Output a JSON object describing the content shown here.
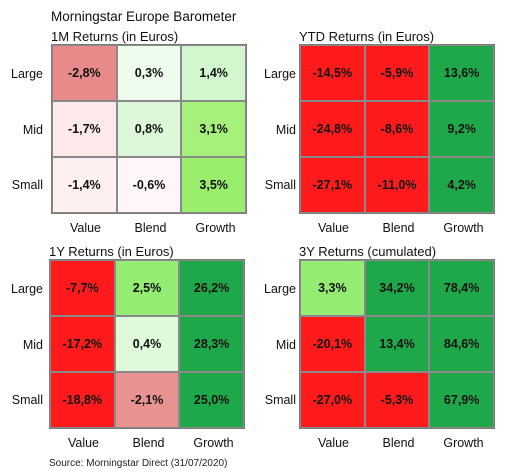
{
  "page_title": "Morningstar Europe Barometer",
  "source": "Source: Morningstar Direct (31/07/2020)",
  "chart_data": [
    {
      "type": "heatmap",
      "title": "1M Returns (in Euros)",
      "rows": [
        "Large",
        "Mid",
        "Small"
      ],
      "columns": [
        "Value",
        "Blend",
        "Growth"
      ],
      "values": [
        [
          "-2,8%",
          "0,3%",
          "1,4%"
        ],
        [
          "-1,7%",
          "0,8%",
          "3,1%"
        ],
        [
          "-1,4%",
          "-0,6%",
          "3,5%"
        ]
      ],
      "colors": [
        [
          "#e88a8a",
          "#eefcee",
          "#d2f7cf"
        ],
        [
          "#fde9e9",
          "#dcf8d8",
          "#a6f07c"
        ],
        [
          "#fff0f0",
          "#fff7f7",
          "#99ee6c"
        ]
      ]
    },
    {
      "type": "heatmap",
      "title": "YTD Returns (in Euros)",
      "rows": [
        "Large",
        "Mid",
        "Small"
      ],
      "columns": [
        "Value",
        "Blend",
        "Growth"
      ],
      "values": [
        [
          "-14,5%",
          "-5,9%",
          "13,6%"
        ],
        [
          "-24,8%",
          "-8,6%",
          "9,2%"
        ],
        [
          "-27,1%",
          "-11,0%",
          "4,2%"
        ]
      ],
      "colors": [
        [
          "#ff1b1b",
          "#ff1b1b",
          "#1ea84a"
        ],
        [
          "#ff1b1b",
          "#ff1b1b",
          "#1ea84a"
        ],
        [
          "#ff1b1b",
          "#ff1b1b",
          "#1ea84a"
        ]
      ]
    },
    {
      "type": "heatmap",
      "title": "1Y Returns (in Euros)",
      "rows": [
        "Large",
        "Mid",
        "Small"
      ],
      "columns": [
        "Value",
        "Blend",
        "Growth"
      ],
      "values": [
        [
          "-7,7%",
          "2,5%",
          "26,2%"
        ],
        [
          "-17,2%",
          "0,4%",
          "28,3%"
        ],
        [
          "-18,8%",
          "-2,1%",
          "25,0%"
        ]
      ],
      "colors": [
        [
          "#ff1b1b",
          "#95ec72",
          "#1ea84a"
        ],
        [
          "#ff1b1b",
          "#dff9da",
          "#1ea84a"
        ],
        [
          "#ff1b1b",
          "#e89292",
          "#1ea84a"
        ]
      ]
    },
    {
      "type": "heatmap",
      "title": "3Y Returns (cumulated)",
      "rows": [
        "Large",
        "Mid",
        "Small"
      ],
      "columns": [
        "Value",
        "Blend",
        "Growth"
      ],
      "values": [
        [
          "3,3%",
          "34,2%",
          "78,4%"
        ],
        [
          "-20,1%",
          "13,4%",
          "84,6%"
        ],
        [
          "-27,0%",
          "-5,3%",
          "67,9%"
        ]
      ],
      "colors": [
        [
          "#95ec72",
          "#1ea84a",
          "#1ea84a"
        ],
        [
          "#ff1b1b",
          "#1ea84a",
          "#1ea84a"
        ],
        [
          "#ff1b1b",
          "#ff1b1b",
          "#1ea84a"
        ]
      ]
    }
  ]
}
